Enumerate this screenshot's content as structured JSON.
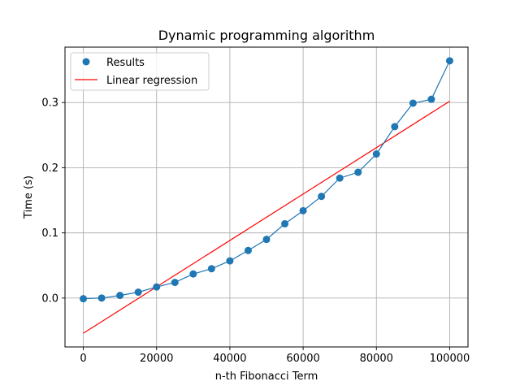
{
  "chart_data": {
    "type": "scatter",
    "title": "Dynamic programming algorithm",
    "xlabel": "n-th Fibonacci Term",
    "ylabel": "Time (s)",
    "xlim": [
      -5000,
      105000
    ],
    "ylim": [
      -0.075,
      0.385
    ],
    "xticks": [
      0,
      20000,
      40000,
      60000,
      80000,
      100000
    ],
    "xtick_labels": [
      "0",
      "20000",
      "40000",
      "60000",
      "80000",
      "100000"
    ],
    "yticks": [
      0.0,
      0.1,
      0.2,
      0.3
    ],
    "ytick_labels": [
      "0.0",
      "0.1",
      "0.2",
      "0.3"
    ],
    "grid": true,
    "legend_position": "upper-left",
    "series": [
      {
        "name": "Results",
        "kind": "scatter+line",
        "color": "#1f77b4",
        "x": [
          0,
          5000,
          10000,
          15000,
          20000,
          25000,
          30000,
          35000,
          40000,
          45000,
          50000,
          55000,
          60000,
          65000,
          70000,
          75000,
          80000,
          85000,
          90000,
          95000,
          100000
        ],
        "y": [
          -0.001,
          0.0,
          0.004,
          0.009,
          0.017,
          0.024,
          0.037,
          0.045,
          0.057,
          0.073,
          0.09,
          0.114,
          0.134,
          0.156,
          0.184,
          0.193,
          0.221,
          0.263,
          0.299,
          0.305,
          0.364
        ]
      },
      {
        "name": "Linear regression",
        "kind": "line",
        "color": "#ff0000",
        "x": [
          0,
          100000
        ],
        "y": [
          -0.054,
          0.302
        ]
      }
    ]
  }
}
